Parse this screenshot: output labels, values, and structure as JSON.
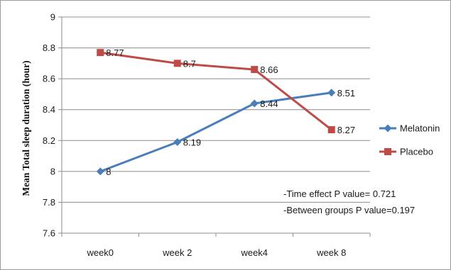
{
  "chart_data": {
    "type": "line",
    "title": "",
    "xlabel": "",
    "ylabel": "Mean Total sleep duration (hour)",
    "categories": [
      "week0",
      "week 2",
      "week4",
      "week 8"
    ],
    "ylim": [
      7.6,
      9
    ],
    "yticks": [
      7.6,
      7.8,
      8,
      8.2,
      8.4,
      8.6,
      8.8,
      9
    ],
    "grid": "y-major",
    "legend_position": "right",
    "series": [
      {
        "name": "Melatonin",
        "color": "#4a7ebb",
        "marker": "diamond",
        "values": [
          8,
          8.19,
          8.44,
          8.51
        ],
        "labels": [
          "8",
          "8.19",
          "8.44",
          "8.51"
        ]
      },
      {
        "name": "Placebo",
        "color": "#be4b48",
        "marker": "square",
        "values": [
          8.77,
          8.7,
          8.66,
          8.27
        ],
        "labels": [
          "8.77",
          "8.7",
          "8.66",
          "8.27"
        ]
      }
    ],
    "annotations": [
      "-Time effect P value= 0.721",
      "-Between groups P value=0.197"
    ]
  }
}
